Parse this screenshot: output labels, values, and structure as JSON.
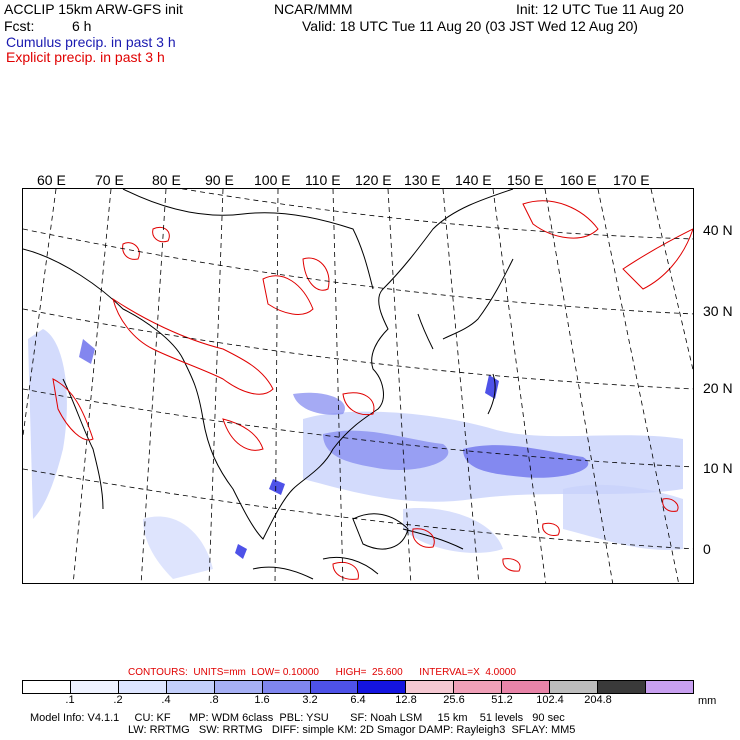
{
  "header": {
    "model_title": "ACCLIP 15km ARW-GFS init",
    "org": "NCAR/MMM",
    "init": "Init: 12 UTC Tue 11 Aug 20",
    "fcst_label": "Fcst:",
    "fcst_value": "6 h",
    "valid": "Valid: 18 UTC Tue 11 Aug 20 (03 JST Wed 12 Aug 20)",
    "cumulus_label": "Cumulus precip. in past 3 h",
    "explicit_label": "Explicit precip. in past 3 h"
  },
  "map": {
    "lon_labels": [
      "60 E",
      "70 E",
      "80 E",
      "90 E",
      "100 E",
      "110 E",
      "120 E",
      "130 E",
      "140 E",
      "150 E",
      "160 E",
      "170 E"
    ],
    "lat_labels": [
      "40 N",
      "30 N",
      "20 N",
      "10 N",
      "0"
    ],
    "colors": {
      "coast": "#000000",
      "grid": "#000000",
      "cumulus_fill": "#3030e0",
      "explicit": "#e00000"
    }
  },
  "contours": {
    "text": "CONTOURS:  UNITS=mm  LOW= 0.10000      HIGH=  25.600      INTERVAL=X  4.0000"
  },
  "colorbar": {
    "colors": [
      "#ffffff",
      "#eef2ff",
      "#dde5ff",
      "#c3cffb",
      "#a6b0f5",
      "#7f86ef",
      "#4e52e8",
      "#1414e0",
      "#f5c8d2",
      "#f0a0b8",
      "#e884a8",
      "#bdbdbd",
      "#3a3a3a",
      "#c8a0f0"
    ],
    "ticks": [
      ".1",
      ".2",
      ".4",
      ".8",
      "1.6",
      "3.2",
      "6.4",
      "12.8",
      "25.6",
      "51.2",
      "102.4",
      "204.8"
    ],
    "unit": "mm"
  },
  "footer": {
    "line1": "Model Info: V4.1.1     CU: KF      MP: WDM 6class  PBL: YSU       SF: Noah LSM     15 km    51 levels   90 sec",
    "line2": "LW: RRTMG   SW: RRTMG   DIFF: simple KM: 2D Smagor DAMP: Rayleigh3  SFLAY: MM5"
  }
}
